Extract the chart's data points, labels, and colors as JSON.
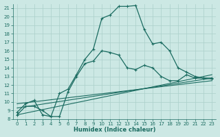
{
  "xlabel": "Humidex (Indice chaleur)",
  "bg_color": "#cce8e4",
  "grid_color": "#aacfca",
  "line_color": "#1a6b60",
  "ylim": [
    8,
    21.5
  ],
  "xlim": [
    -0.5,
    23.5
  ],
  "yticks": [
    8,
    9,
    10,
    11,
    12,
    13,
    14,
    15,
    16,
    17,
    18,
    19,
    20,
    21
  ],
  "xticks": [
    0,
    1,
    2,
    3,
    4,
    5,
    6,
    7,
    8,
    9,
    10,
    11,
    12,
    13,
    14,
    15,
    16,
    17,
    18,
    19,
    20,
    21,
    22,
    23
  ],
  "curve_main_x": [
    0,
    1,
    2,
    3,
    4,
    5,
    6,
    7,
    8,
    9,
    10,
    11,
    12,
    13,
    14,
    15,
    16,
    17,
    18,
    19,
    20,
    21,
    22,
    23
  ],
  "curve_main_y": [
    8.8,
    9.8,
    10.2,
    8.5,
    8.3,
    11.0,
    11.5,
    13.2,
    15.0,
    16.2,
    19.8,
    20.2,
    21.2,
    21.2,
    21.3,
    18.5,
    16.8,
    17.0,
    16.0,
    14.0,
    13.5,
    13.0,
    12.8,
    12.7
  ],
  "curve_sub_x": [
    0,
    1,
    2,
    3,
    4,
    5,
    6,
    7,
    8,
    9,
    10,
    11,
    12,
    13,
    14,
    15,
    16,
    17,
    18,
    19,
    20,
    21,
    22,
    23
  ],
  "curve_sub_y": [
    8.5,
    9.5,
    9.5,
    9.0,
    8.3,
    8.3,
    11.2,
    13.0,
    14.5,
    14.8,
    16.0,
    15.8,
    15.5,
    14.0,
    13.8,
    14.3,
    14.0,
    13.0,
    12.5,
    12.5,
    13.2,
    12.8,
    12.8,
    12.8
  ],
  "line1_x": [
    0,
    23
  ],
  "line1_y": [
    8.5,
    13.2
  ],
  "line2_x": [
    0,
    23
  ],
  "line2_y": [
    9.3,
    12.8
  ],
  "line3_x": [
    0,
    23
  ],
  "line3_y": [
    9.8,
    12.5
  ]
}
